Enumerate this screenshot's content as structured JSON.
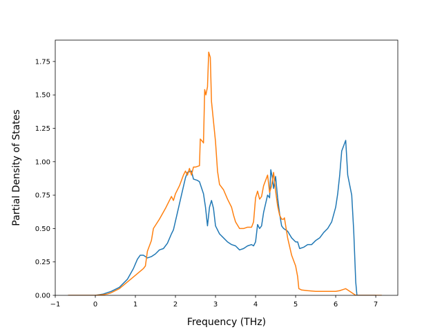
{
  "chart_data": {
    "type": "line",
    "title": "",
    "xlabel": "Frequency (THz)",
    "ylabel": "Partial Density of States",
    "xlim": [
      -1.0,
      7.55
    ],
    "ylim": [
      0.0,
      1.91
    ],
    "xticks": [
      -1,
      0,
      1,
      2,
      3,
      4,
      5,
      6,
      7
    ],
    "xtick_labels": [
      "−1",
      "0",
      "1",
      "2",
      "3",
      "4",
      "5",
      "6",
      "7"
    ],
    "yticks": [
      0.0,
      0.25,
      0.5,
      0.75,
      1.0,
      1.25,
      1.5,
      1.75
    ],
    "ytick_labels": [
      "0.00",
      "0.25",
      "0.50",
      "0.75",
      "1.00",
      "1.25",
      "1.50",
      "1.75"
    ],
    "grid": false,
    "legend": "none",
    "series": [
      {
        "color": "#1f77b4",
        "points": [
          [
            -0.68,
            0.0
          ],
          [
            0.0,
            0.0
          ],
          [
            0.2,
            0.01
          ],
          [
            0.4,
            0.03
          ],
          [
            0.6,
            0.06
          ],
          [
            0.8,
            0.12
          ],
          [
            0.95,
            0.2
          ],
          [
            1.05,
            0.27
          ],
          [
            1.12,
            0.3
          ],
          [
            1.2,
            0.3
          ],
          [
            1.3,
            0.28
          ],
          [
            1.4,
            0.29
          ],
          [
            1.5,
            0.31
          ],
          [
            1.6,
            0.34
          ],
          [
            1.7,
            0.35
          ],
          [
            1.8,
            0.39
          ],
          [
            1.9,
            0.46
          ],
          [
            1.95,
            0.49
          ],
          [
            2.05,
            0.62
          ],
          [
            2.15,
            0.75
          ],
          [
            2.25,
            0.88
          ],
          [
            2.3,
            0.92
          ],
          [
            2.4,
            0.93
          ],
          [
            2.45,
            0.87
          ],
          [
            2.55,
            0.86
          ],
          [
            2.6,
            0.85
          ],
          [
            2.7,
            0.76
          ],
          [
            2.75,
            0.66
          ],
          [
            2.8,
            0.52
          ],
          [
            2.85,
            0.66
          ],
          [
            2.9,
            0.71
          ],
          [
            2.95,
            0.65
          ],
          [
            3.0,
            0.52
          ],
          [
            3.1,
            0.46
          ],
          [
            3.2,
            0.43
          ],
          [
            3.3,
            0.4
          ],
          [
            3.4,
            0.38
          ],
          [
            3.5,
            0.37
          ],
          [
            3.6,
            0.34
          ],
          [
            3.7,
            0.35
          ],
          [
            3.8,
            0.37
          ],
          [
            3.9,
            0.38
          ],
          [
            3.95,
            0.37
          ],
          [
            4.0,
            0.4
          ],
          [
            4.05,
            0.53
          ],
          [
            4.1,
            0.5
          ],
          [
            4.15,
            0.52
          ],
          [
            4.2,
            0.62
          ],
          [
            4.3,
            0.75
          ],
          [
            4.35,
            0.73
          ],
          [
            4.38,
            0.94
          ],
          [
            4.42,
            0.88
          ],
          [
            4.45,
            0.8
          ],
          [
            4.5,
            0.89
          ],
          [
            4.55,
            0.73
          ],
          [
            4.6,
            0.61
          ],
          [
            4.65,
            0.52
          ],
          [
            4.7,
            0.5
          ],
          [
            4.8,
            0.48
          ],
          [
            4.9,
            0.43
          ],
          [
            5.0,
            0.4
          ],
          [
            5.05,
            0.4
          ],
          [
            5.1,
            0.35
          ],
          [
            5.2,
            0.36
          ],
          [
            5.3,
            0.38
          ],
          [
            5.4,
            0.38
          ],
          [
            5.5,
            0.41
          ],
          [
            5.6,
            0.43
          ],
          [
            5.7,
            0.47
          ],
          [
            5.8,
            0.5
          ],
          [
            5.9,
            0.55
          ],
          [
            6.0,
            0.66
          ],
          [
            6.05,
            0.76
          ],
          [
            6.1,
            0.9
          ],
          [
            6.15,
            1.08
          ],
          [
            6.2,
            1.12
          ],
          [
            6.25,
            1.16
          ],
          [
            6.3,
            0.9
          ],
          [
            6.4,
            0.75
          ],
          [
            6.45,
            0.48
          ],
          [
            6.5,
            0.1
          ],
          [
            6.53,
            0.0
          ],
          [
            7.0,
            0.0
          ]
        ]
      },
      {
        "color": "#ff7f0e",
        "points": [
          [
            -0.68,
            0.0
          ],
          [
            0.0,
            0.0
          ],
          [
            0.2,
            0.005
          ],
          [
            0.3,
            0.01
          ],
          [
            0.4,
            0.02
          ],
          [
            0.6,
            0.05
          ],
          [
            0.8,
            0.1
          ],
          [
            1.0,
            0.15
          ],
          [
            1.2,
            0.2
          ],
          [
            1.25,
            0.22
          ],
          [
            1.3,
            0.33
          ],
          [
            1.4,
            0.41
          ],
          [
            1.45,
            0.5
          ],
          [
            1.6,
            0.57
          ],
          [
            1.75,
            0.65
          ],
          [
            1.85,
            0.71
          ],
          [
            1.9,
            0.74
          ],
          [
            1.95,
            0.71
          ],
          [
            2.0,
            0.76
          ],
          [
            2.1,
            0.82
          ],
          [
            2.2,
            0.9
          ],
          [
            2.25,
            0.93
          ],
          [
            2.3,
            0.9
          ],
          [
            2.35,
            0.95
          ],
          [
            2.4,
            0.9
          ],
          [
            2.45,
            0.96
          ],
          [
            2.5,
            0.96
          ],
          [
            2.6,
            0.97
          ],
          [
            2.62,
            1.17
          ],
          [
            2.68,
            1.15
          ],
          [
            2.7,
            1.14
          ],
          [
            2.73,
            1.54
          ],
          [
            2.76,
            1.5
          ],
          [
            2.8,
            1.56
          ],
          [
            2.83,
            1.82
          ],
          [
            2.87,
            1.78
          ],
          [
            2.9,
            1.45
          ],
          [
            2.95,
            1.3
          ],
          [
            3.0,
            1.15
          ],
          [
            3.05,
            0.93
          ],
          [
            3.1,
            0.83
          ],
          [
            3.2,
            0.79
          ],
          [
            3.3,
            0.72
          ],
          [
            3.4,
            0.66
          ],
          [
            3.45,
            0.6
          ],
          [
            3.5,
            0.55
          ],
          [
            3.6,
            0.5
          ],
          [
            3.7,
            0.5
          ],
          [
            3.8,
            0.51
          ],
          [
            3.9,
            0.51
          ],
          [
            3.95,
            0.55
          ],
          [
            4.0,
            0.73
          ],
          [
            4.05,
            0.78
          ],
          [
            4.1,
            0.72
          ],
          [
            4.15,
            0.74
          ],
          [
            4.2,
            0.82
          ],
          [
            4.3,
            0.9
          ],
          [
            4.35,
            0.77
          ],
          [
            4.4,
            0.82
          ],
          [
            4.45,
            0.92
          ],
          [
            4.5,
            0.78
          ],
          [
            4.55,
            0.67
          ],
          [
            4.6,
            0.6
          ],
          [
            4.65,
            0.57
          ],
          [
            4.7,
            0.57
          ],
          [
            4.72,
            0.58
          ],
          [
            4.8,
            0.43
          ],
          [
            4.9,
            0.3
          ],
          [
            5.0,
            0.22
          ],
          [
            5.05,
            0.14
          ],
          [
            5.08,
            0.05
          ],
          [
            5.15,
            0.04
          ],
          [
            5.3,
            0.035
          ],
          [
            5.5,
            0.03
          ],
          [
            5.8,
            0.03
          ],
          [
            6.0,
            0.03
          ],
          [
            6.1,
            0.035
          ],
          [
            6.2,
            0.045
          ],
          [
            6.25,
            0.05
          ],
          [
            6.3,
            0.04
          ],
          [
            6.4,
            0.02
          ],
          [
            6.5,
            0.0
          ],
          [
            7.15,
            0.0
          ]
        ]
      }
    ]
  }
}
